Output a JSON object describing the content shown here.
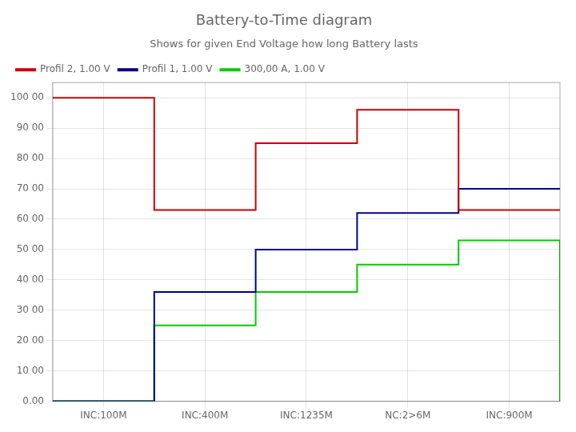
{
  "chart_data": {
    "type": "line",
    "title": "Battery-to-Time diagram",
    "subtitle": "Shows for given End Voltage how long Battery lasts",
    "series": [
      {
        "name": "Profil 2, 1.00 V",
        "color": "#CC0000",
        "x": [
          0,
          1,
          1,
          2,
          2,
          3,
          3,
          4,
          4,
          5
        ],
        "values": [
          100000,
          100000,
          63000,
          63000,
          85000,
          85000,
          96000,
          96000,
          63000,
          63000
        ]
      },
      {
        "name": "Profil 1, 1.00 V",
        "color": "#00008B",
        "x": [
          0,
          1,
          1,
          2,
          2,
          3,
          3,
          4,
          4,
          5
        ],
        "values": [
          0,
          0,
          36000,
          36000,
          50000,
          50000,
          62000,
          62000,
          70000,
          70000
        ]
      },
      {
        "name": "300,00 A, 1.00 V",
        "color": "#00CC00",
        "x": [
          0,
          1,
          1,
          2,
          2,
          3,
          3,
          4,
          4,
          5,
          5
        ],
        "values": [
          0,
          0,
          25000,
          25000,
          36000,
          36000,
          45000,
          45000,
          53000,
          53000,
          0
        ]
      }
    ],
    "xlim": [
      0,
      5
    ],
    "xticks": [
      {
        "value": 0.5,
        "label": "INC:100M"
      },
      {
        "value": 1.5,
        "label": "INC:400M"
      },
      {
        "value": 2.5,
        "label": "INC:1235M"
      },
      {
        "value": 3.5,
        "label": "NC:2>6M"
      },
      {
        "value": 4.5,
        "label": "INC:900M"
      }
    ],
    "ylim": [
      0,
      105000
    ],
    "yticks": [
      {
        "value": 0,
        "label": "0.00"
      },
      {
        "value": 10000,
        "label": "10 00"
      },
      {
        "value": 20000,
        "label": "20 00"
      },
      {
        "value": 30000,
        "label": "30 00"
      },
      {
        "value": 40000,
        "label": "40 00"
      },
      {
        "value": 50000,
        "label": "50 00"
      },
      {
        "value": 60000,
        "label": "60 00"
      },
      {
        "value": 70000,
        "label": "70 00"
      },
      {
        "value": 80000,
        "label": "80 00"
      },
      {
        "value": 90000,
        "label": "90 00"
      },
      {
        "value": 100000,
        "label": "100 00"
      }
    ],
    "grid": true,
    "legend": "upper left"
  }
}
